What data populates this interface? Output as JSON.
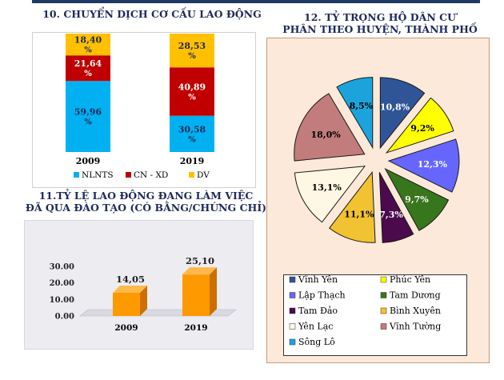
{
  "titles": {
    "chart10": "10. CHUYỂN DỊCH CƠ CẤU LAO ĐỘNG",
    "chart11_line1": "11.TỶ LỆ LAO ĐỘNG ĐANG LÀM VIỆC",
    "chart11_line2": "ĐÃ QUA ĐÀO TẠO (CÓ BẰNG/CHỨNG CHỈ)",
    "chart12_line1": "12. TỶ TRỌNG HỘ DÂN CƯ",
    "chart12_line2": "PHÂN THEO HUYỆN, THÀNH PHỐ"
  },
  "chart_data": [
    {
      "id": "chart10",
      "type": "bar",
      "stacked": true,
      "title": "10. CHUYỂN DỊCH CƠ CẤU LAO ĐỘNG",
      "categories": [
        "2009",
        "2019"
      ],
      "series": [
        {
          "name": "NLNTS",
          "values": [
            59.96,
            30.58
          ],
          "labels": [
            "59,96 %",
            "30,58 %"
          ],
          "color": "#00b0f0"
        },
        {
          "name": "CN - XD",
          "values": [
            21.64,
            40.89
          ],
          "labels": [
            "21,64 %",
            "40,89 %"
          ],
          "color": "#c00000"
        },
        {
          "name": "DV",
          "values": [
            18.4,
            28.53
          ],
          "labels": [
            "18,40 %",
            "28,53 %"
          ],
          "color": "#ffc000"
        }
      ],
      "legend_position": "bottom",
      "grid": false
    },
    {
      "id": "chart11",
      "type": "bar",
      "three_d": true,
      "title": "11.TỶ LỆ LAO ĐỘNG ĐANG LÀM VIỆC ĐÃ QUA ĐÀO TẠO (CÓ BẰNG/CHỨNG CHỈ)",
      "categories": [
        "2009",
        "2019"
      ],
      "values": [
        14.05,
        25.1
      ],
      "value_labels": [
        "14,05",
        "25,10"
      ],
      "ylim": [
        0,
        30
      ],
      "yticks": [
        0,
        10,
        20,
        30
      ],
      "ytick_labels": [
        "0.00",
        "10.00",
        "20.00",
        "30.00"
      ],
      "color": "#ff9900",
      "grid": false
    },
    {
      "id": "chart12",
      "type": "pie",
      "exploded": true,
      "title": "12. TỶ TRỌNG HỘ DÂN CƯ PHÂN THEO HUYỆN, THÀNH PHỐ",
      "slices": [
        {
          "name": "Vĩnh Yên",
          "value": 10.8,
          "label": "10,8%",
          "color": "#2f5597",
          "text_color": "#ffffff"
        },
        {
          "name": "Phúc Yên",
          "value": 9.2,
          "label": "9,2%",
          "color": "#ffff00",
          "text_color": "#000000"
        },
        {
          "name": "Lập Thạch",
          "value": 12.3,
          "label": "12,3%",
          "color": "#6666ff",
          "text_color": "#ffffff"
        },
        {
          "name": "Tam Dương",
          "value": 9.7,
          "label": "9,7%",
          "color": "#38761d",
          "text_color": "#ffffff"
        },
        {
          "name": "Tam Đảo",
          "value": 7.3,
          "label": "7,3%",
          "color": "#4b0a4b",
          "text_color": "#ffffff"
        },
        {
          "name": "Bình Xuyên",
          "value": 11.1,
          "label": "11,1%",
          "color": "#f1c232",
          "text_color": "#000000"
        },
        {
          "name": "Yên Lạc",
          "value": 13.1,
          "label": "13,1%",
          "color": "#fdf7e3",
          "text_color": "#000000"
        },
        {
          "name": "Vĩnh Tường",
          "value": 18.0,
          "label": "18,0%",
          "color": "#c27c7c",
          "text_color": "#000000"
        },
        {
          "name": "Sông Lô",
          "value": 8.5,
          "label": "8,5%",
          "color": "#1ca3dc",
          "text_color": "#000000"
        }
      ],
      "legend_position": "bottom"
    }
  ]
}
